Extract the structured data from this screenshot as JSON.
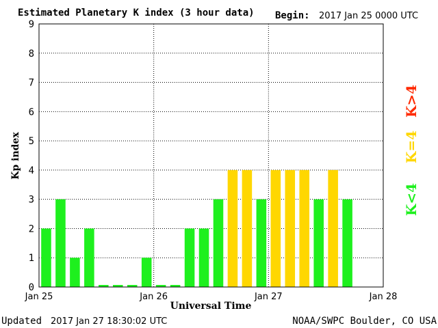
{
  "header": {
    "title": "Estimated Planetary K index (3 hour data)",
    "begin_label": "Begin:",
    "begin_value": "2017 Jan 25 0000 UTC"
  },
  "footer": {
    "updated_label": "Updated",
    "updated_value": "2017 Jan 27 18:30:02 UTC",
    "source": "NOAA/SWPC Boulder, CO USA"
  },
  "legend": {
    "high": "K>4",
    "equal": "K=4",
    "low": "K<4"
  },
  "colors": {
    "low": "#1ef01e",
    "equal": "#ffd700",
    "high": "#ff2a00",
    "grid": "#000000"
  },
  "chart_data": {
    "type": "bar",
    "xlabel": "Universal Time",
    "ylabel": "Kp index",
    "ylim": [
      0,
      9
    ],
    "yticks": [
      "0",
      "1",
      "2",
      "3",
      "4",
      "5",
      "6",
      "7",
      "8",
      "9"
    ],
    "xticks": [
      "Jan 25",
      "Jan 26",
      "Jan 27",
      "Jan 28"
    ],
    "bins_per_day": 8,
    "total_bins": 24,
    "values": [
      2,
      3,
      1,
      2,
      0,
      0,
      0,
      1,
      0,
      0,
      2,
      2,
      3,
      4,
      4,
      3,
      4,
      4,
      4,
      3,
      4,
      3
    ],
    "grid": true
  }
}
